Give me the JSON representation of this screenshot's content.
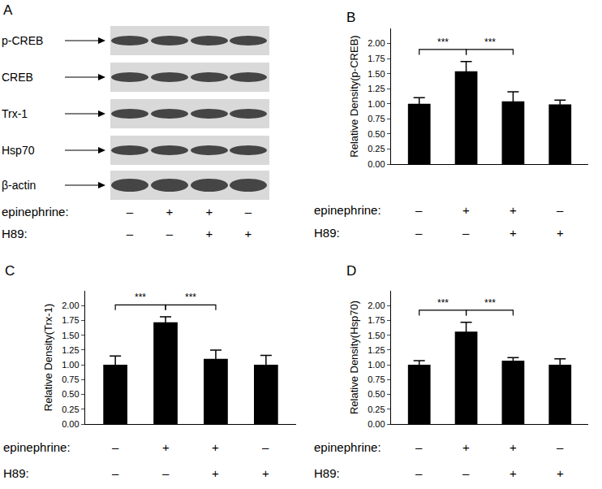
{
  "blot": {
    "panel": "A",
    "rows": [
      "p-CREB",
      "CREB",
      "Trx-1",
      "Hsp70",
      "β-actin"
    ],
    "conditions": [
      {
        "name": "epinephrine:",
        "signs": [
          "–",
          "+",
          "+",
          "–"
        ]
      },
      {
        "name": "H89:",
        "signs": [
          "–",
          "–",
          "+",
          "+"
        ]
      }
    ]
  },
  "chart_data": [
    {
      "panel": "B",
      "type": "bar",
      "y_label": "Relative Density(p-CREB)",
      "values": [
        1.0,
        1.54,
        1.04,
        0.99
      ],
      "errors": [
        0.1,
        0.16,
        0.16,
        0.07
      ],
      "color": "#000000",
      "ylim": [
        0,
        2.25
      ],
      "yticks": [
        {
          "value": 0,
          "label": "0.00"
        },
        {
          "value": 0.25,
          "label": "0.25"
        },
        {
          "value": 0.5,
          "label": "0.50"
        },
        {
          "value": 0.75,
          "label": "0.75"
        },
        {
          "value": 1,
          "label": "1.00"
        },
        {
          "value": 1.25,
          "label": "1.25"
        },
        {
          "value": 1.5,
          "label": "1.50"
        },
        {
          "value": 1.75,
          "label": "1.75"
        },
        {
          "value": 2,
          "label": "2.00"
        }
      ],
      "grid": false,
      "tick_labels": "y",
      "significance": [
        {
          "from": 0,
          "to": 1,
          "label": "***"
        },
        {
          "from": 1,
          "to": 2,
          "label": "***"
        }
      ],
      "conditions": [
        {
          "name": "epinephrine:",
          "signs": [
            "–",
            "+",
            "+",
            "–"
          ]
        },
        {
          "name": "H89:",
          "signs": [
            "–",
            "–",
            "+",
            "+"
          ]
        }
      ]
    },
    {
      "panel": "C",
      "type": "bar",
      "y_label": "Relative Density(Trx-1)",
      "values": [
        1.0,
        1.72,
        1.1,
        1.0
      ],
      "errors": [
        0.15,
        0.09,
        0.15,
        0.16
      ],
      "color": "#000000",
      "ylim": [
        0,
        2.25
      ],
      "yticks": [
        {
          "value": 0,
          "label": "0.00"
        },
        {
          "value": 0.25,
          "label": "0.25"
        },
        {
          "value": 0.5,
          "label": "0.50"
        },
        {
          "value": 0.75,
          "label": "0.75"
        },
        {
          "value": 1,
          "label": "1.00"
        },
        {
          "value": 1.25,
          "label": "1.25"
        },
        {
          "value": 1.5,
          "label": "1.50"
        },
        {
          "value": 1.75,
          "label": "1.75"
        },
        {
          "value": 2,
          "label": "2.00"
        }
      ],
      "grid": false,
      "tick_labels": "y",
      "significance": [
        {
          "from": 0,
          "to": 1,
          "label": "***"
        },
        {
          "from": 1,
          "to": 2,
          "label": "***"
        }
      ],
      "conditions": [
        {
          "name": "epinephrine:",
          "signs": [
            "–",
            "+",
            "+",
            "–"
          ]
        },
        {
          "name": "H89:",
          "signs": [
            "–",
            "–",
            "+",
            "+"
          ]
        }
      ]
    },
    {
      "panel": "D",
      "type": "bar",
      "y_label": "Relative Density(Hsp70)",
      "values": [
        1.0,
        1.56,
        1.07,
        1.0
      ],
      "errors": [
        0.07,
        0.16,
        0.05,
        0.1
      ],
      "color": "#000000",
      "ylim": [
        0,
        2.25
      ],
      "yticks": [
        {
          "value": 0,
          "label": "0.00"
        },
        {
          "value": 0.25,
          "label": "0.25"
        },
        {
          "value": 0.5,
          "label": "0.50"
        },
        {
          "value": 0.75,
          "label": "0.75"
        },
        {
          "value": 1,
          "label": "1.00"
        },
        {
          "value": 1.25,
          "label": "1.25"
        },
        {
          "value": 1.5,
          "label": "1.50"
        },
        {
          "value": 1.75,
          "label": "1.75"
        },
        {
          "value": 2,
          "label": "2.00"
        }
      ],
      "grid": false,
      "tick_labels": "y",
      "significance": [
        {
          "from": 0,
          "to": 1,
          "label": "***"
        },
        {
          "from": 1,
          "to": 2,
          "label": "***"
        }
      ],
      "conditions": [
        {
          "name": "epinephrine:",
          "signs": [
            "–",
            "+",
            "+",
            "–"
          ]
        },
        {
          "name": "H89:",
          "signs": [
            "–",
            "–",
            "+",
            "+"
          ]
        }
      ]
    }
  ]
}
